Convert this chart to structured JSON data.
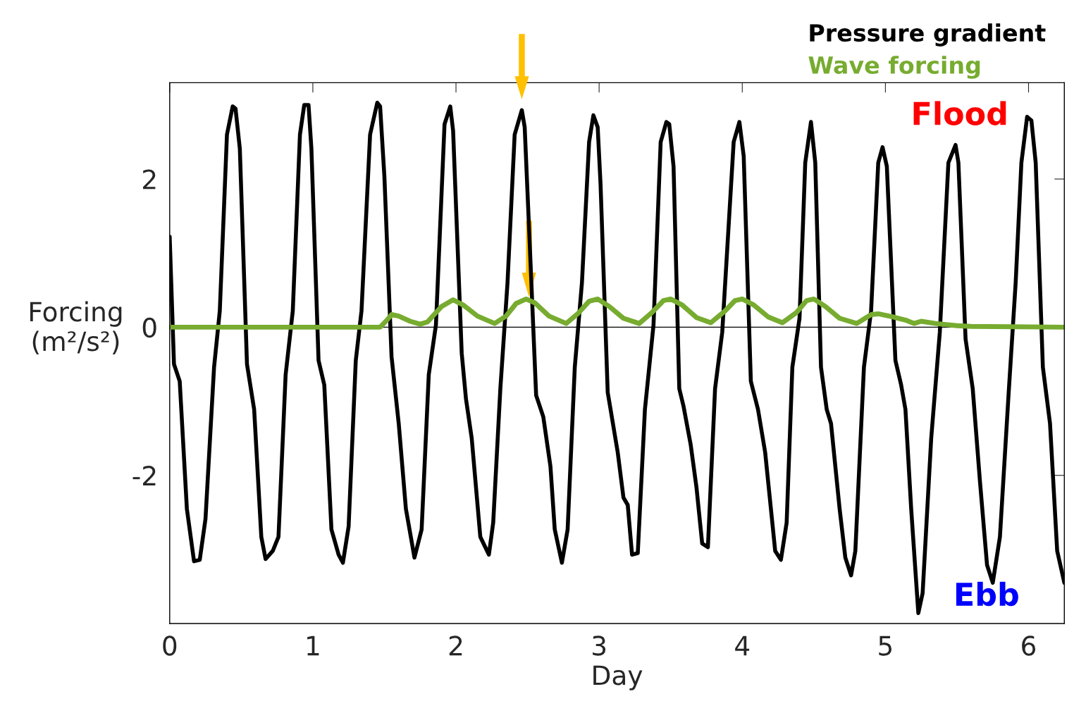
{
  "chart_data": {
    "type": "line",
    "xlabel": "Day",
    "ylabel": "Forcing\n(m²/s²)",
    "xlim": [
      0,
      6.25
    ],
    "ylim": [
      -4,
      3.3
    ],
    "xticks": [
      0,
      1,
      2,
      3,
      4,
      5,
      6
    ],
    "yticks": [
      -2,
      0,
      2
    ],
    "legend": "top right",
    "grid": false,
    "marker": "none",
    "line_style": "solid",
    "ref_lines": [
      {
        "axis": "y",
        "value": 0,
        "color": "#000000"
      }
    ],
    "annotations": [
      "Flood",
      "Ebb"
    ],
    "series": [
      {
        "name": "Pressure gradient",
        "color": "#000000",
        "x": [
          0,
          0.03,
          0.07,
          0.12,
          0.17,
          0.21,
          0.25,
          0.31,
          0.35,
          0.4,
          0.44,
          0.46,
          0.49,
          0.54,
          0.59,
          0.64,
          0.67,
          0.72,
          0.76,
          0.81,
          0.86,
          0.91,
          0.94,
          0.97,
          0.99,
          1.04,
          1.08,
          1.13,
          1.18,
          1.21,
          1.25,
          1.3,
          1.34,
          1.4,
          1.45,
          1.47,
          1.5,
          1.55,
          1.6,
          1.65,
          1.71,
          1.76,
          1.81,
          1.86,
          1.92,
          1.96,
          1.98,
          2.04,
          2.07,
          2.11,
          2.17,
          2.23,
          2.26,
          2.31,
          2.36,
          2.41,
          2.46,
          2.48,
          2.51,
          2.56,
          2.61,
          2.66,
          2.69,
          2.74,
          2.78,
          2.83,
          2.88,
          2.93,
          2.96,
          2.99,
          3.01,
          3.06,
          3.08,
          3.13,
          3.17,
          3.2,
          3.23,
          3.27,
          3.32,
          3.38,
          3.43,
          3.47,
          3.49,
          3.52,
          3.56,
          3.59,
          3.64,
          3.68,
          3.72,
          3.76,
          3.81,
          3.86,
          3.94,
          3.98,
          4.01,
          4.06,
          4.11,
          4.16,
          4.2,
          4.23,
          4.27,
          4.31,
          4.35,
          4.4,
          4.44,
          4.48,
          4.51,
          4.55,
          4.59,
          4.62,
          4.68,
          4.72,
          4.76,
          4.79,
          4.85,
          4.9,
          4.95,
          4.98,
          5.01,
          5.07,
          5.11,
          5.14,
          5.18,
          5.23,
          5.26,
          5.32,
          5.38,
          5.44,
          5.49,
          5.51,
          5.56,
          5.61,
          5.66,
          5.71,
          5.75,
          5.8,
          5.86,
          5.91,
          5.95,
          5.99,
          6.02,
          6.05,
          6.1,
          6.15,
          6.2,
          6.25
        ],
        "values": [
          1.22,
          -0.5,
          -0.73,
          -2.45,
          -3.16,
          -3.14,
          -2.59,
          -0.54,
          0.22,
          2.6,
          2.98,
          2.95,
          2.41,
          -0.5,
          -1.11,
          -2.83,
          -3.13,
          -3.02,
          -2.83,
          -0.64,
          0.22,
          2.6,
          3.0,
          3.0,
          2.41,
          -0.45,
          -0.78,
          -2.73,
          -3.07,
          -3.18,
          -2.69,
          -0.45,
          0.22,
          2.6,
          3.03,
          2.98,
          2.03,
          -0.4,
          -1.3,
          -2.45,
          -3.11,
          -2.73,
          -0.64,
          0.03,
          2.74,
          2.98,
          2.65,
          -0.35,
          -0.97,
          -1.5,
          -2.83,
          -3.07,
          -2.64,
          -0.83,
          0.6,
          2.6,
          2.93,
          2.7,
          1.36,
          -0.92,
          -1.21,
          -1.88,
          -2.73,
          -3.18,
          -2.73,
          -0.54,
          0.6,
          2.5,
          2.86,
          2.7,
          1.93,
          -0.88,
          -1.11,
          -1.69,
          -2.3,
          -2.4,
          -3.07,
          -3.05,
          -1.11,
          0.03,
          2.5,
          2.77,
          2.74,
          2.17,
          -0.83,
          -1.07,
          -1.59,
          -2.16,
          -2.92,
          -2.97,
          -0.83,
          -0.07,
          2.5,
          2.77,
          2.31,
          -0.73,
          -1.11,
          -1.69,
          -2.45,
          -3.02,
          -3.14,
          -2.64,
          -0.54,
          0.12,
          2.22,
          2.77,
          2.22,
          -0.54,
          -1.11,
          -1.3,
          -2.45,
          -3.11,
          -3.35,
          -3.02,
          -0.54,
          0.22,
          2.22,
          2.43,
          2.17,
          -0.45,
          -0.78,
          -1.11,
          -2.45,
          -3.86,
          -3.59,
          -1.5,
          -0.07,
          2.22,
          2.46,
          2.22,
          -0.16,
          -0.83,
          -2.07,
          -3.21,
          -3.45,
          -2.83,
          -0.92,
          0.6,
          2.22,
          2.84,
          2.79,
          2.22,
          -0.54,
          -1.3,
          -3.02,
          -3.45
        ]
      },
      {
        "name": "Wave forcing",
        "color": "#77ac30",
        "x": [
          0,
          1.47,
          1.52,
          1.55,
          1.6,
          1.68,
          1.75,
          1.8,
          1.9,
          1.98,
          2.05,
          2.15,
          2.27,
          2.35,
          2.42,
          2.49,
          2.55,
          2.65,
          2.77,
          2.85,
          2.93,
          2.99,
          3.07,
          3.17,
          3.28,
          3.37,
          3.45,
          3.5,
          3.58,
          3.68,
          3.78,
          3.88,
          3.95,
          4.0,
          4.08,
          4.18,
          4.28,
          4.38,
          4.45,
          4.5,
          4.58,
          4.68,
          4.8,
          4.9,
          4.95,
          5.05,
          5.15,
          5.2,
          5.25,
          5.35,
          5.5,
          5.6,
          6.25
        ],
        "values": [
          0,
          0,
          0.1,
          0.17,
          0.15,
          0.08,
          0.04,
          0.07,
          0.28,
          0.37,
          0.3,
          0.15,
          0.05,
          0.15,
          0.32,
          0.38,
          0.33,
          0.15,
          0.05,
          0.18,
          0.35,
          0.38,
          0.28,
          0.12,
          0.05,
          0.2,
          0.36,
          0.38,
          0.3,
          0.13,
          0.06,
          0.22,
          0.36,
          0.38,
          0.3,
          0.14,
          0.06,
          0.2,
          0.36,
          0.38,
          0.28,
          0.12,
          0.05,
          0.17,
          0.18,
          0.14,
          0.09,
          0.05,
          0.08,
          0.05,
          0.02,
          0.01,
          0
        ]
      }
    ]
  }
}
